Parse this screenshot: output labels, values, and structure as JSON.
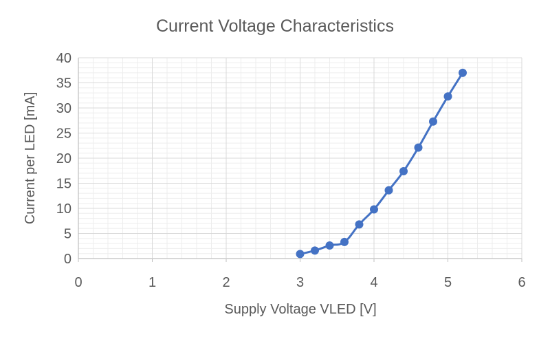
{
  "chart_data": {
    "type": "scatter",
    "title": "Current Voltage Characteristics",
    "xlabel": "Supply Voltage VLED [V]",
    "ylabel": "Current per LED [mA]",
    "xlim": [
      0,
      6
    ],
    "ylim": [
      0,
      40
    ],
    "x_ticks": [
      0,
      1,
      2,
      3,
      4,
      5,
      6
    ],
    "y_ticks": [
      0,
      5,
      10,
      15,
      20,
      25,
      30,
      35,
      40
    ],
    "x_minor_step": 0.2,
    "y_minor_step": 1,
    "grid": true,
    "markers": true,
    "line": "smooth",
    "series": [
      {
        "color": "#4472C4",
        "x": [
          3.0,
          3.2,
          3.4,
          3.6,
          3.8,
          4.0,
          4.2,
          4.4,
          4.6,
          4.8,
          5.0,
          5.2
        ],
        "y": [
          0.9,
          1.6,
          2.6,
          3.3,
          6.8,
          9.8,
          13.6,
          17.4,
          22.1,
          27.3,
          32.3,
          37.0
        ]
      }
    ]
  }
}
